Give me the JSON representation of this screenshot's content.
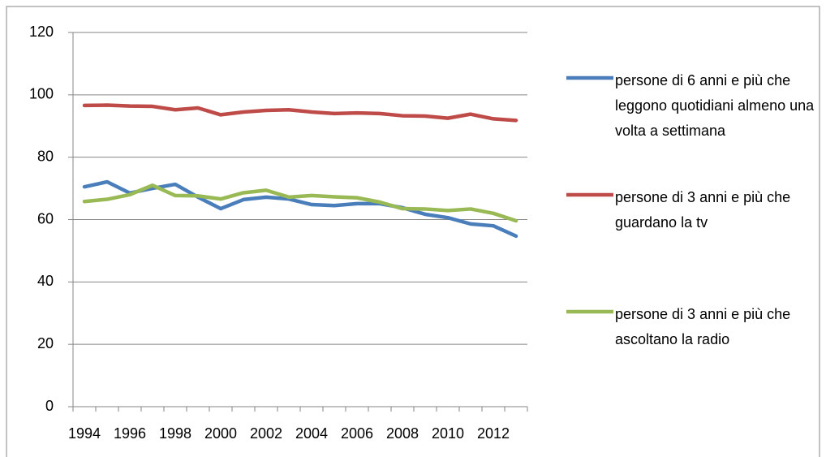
{
  "chart_data": {
    "type": "line",
    "categories": [
      "1994",
      null,
      "1996",
      null,
      "1998",
      null,
      "2000",
      null,
      "2002",
      null,
      "2004",
      null,
      "2006",
      null,
      "2008",
      null,
      "2010",
      null,
      "2012",
      null
    ],
    "series": [
      {
        "name": "persone di 6 anni e più che leggono quotidiani almeno una volta a settimana",
        "color": "#4a7ebb",
        "values": [
          70.5,
          72.1,
          68.5,
          70.0,
          71.3,
          67.2,
          63.5,
          66.4,
          67.2,
          66.6,
          64.8,
          64.5,
          65.1,
          65.1,
          63.8,
          61.7,
          60.6,
          58.6,
          58.0,
          54.7
        ]
      },
      {
        "name": "persone di 3 anni e più che guardano la tv",
        "color": "#be4b48",
        "values": [
          96.6,
          96.7,
          96.4,
          96.3,
          95.2,
          95.8,
          93.6,
          94.5,
          95.0,
          95.2,
          94.5,
          94.0,
          94.2,
          94.0,
          93.3,
          93.2,
          92.5,
          93.8,
          92.3,
          91.8
        ]
      },
      {
        "name": "persone di 3 anni e più che ascoltano la radio",
        "color": "#98b954",
        "values": [
          65.8,
          66.5,
          68.0,
          71.0,
          67.7,
          67.6,
          66.6,
          68.6,
          69.4,
          67.2,
          67.7,
          67.3,
          67.0,
          65.6,
          63.5,
          63.4,
          62.9,
          63.4,
          62.0,
          59.6
        ]
      }
    ],
    "ylim": [
      0,
      120
    ],
    "yticks": [
      0,
      20,
      40,
      60,
      80,
      100,
      120
    ],
    "grid": true,
    "legend": "right"
  }
}
